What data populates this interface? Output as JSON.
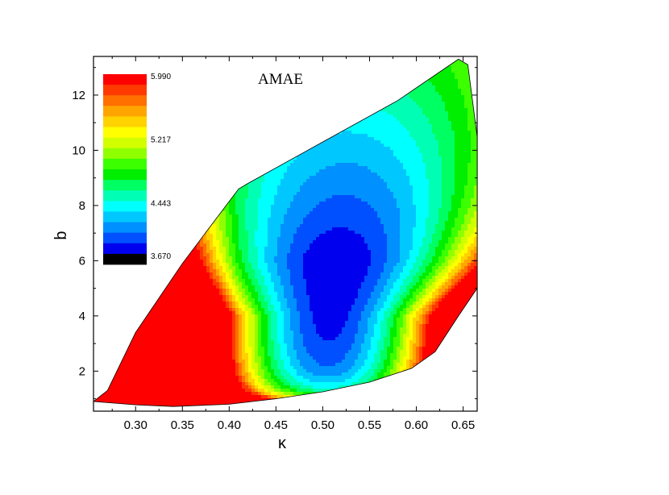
{
  "chart_data": {
    "type": "contour",
    "title": "AMAE",
    "xlabel": "κ",
    "ylabel": "b",
    "xlim": [
      0.255,
      0.665
    ],
    "ylim": [
      0.55,
      13.4
    ],
    "xticks": [
      0.3,
      0.35,
      0.4,
      0.45,
      0.5,
      0.55,
      0.6,
      0.65
    ],
    "xtick_labels": [
      "0.30",
      "0.35",
      "0.40",
      "0.45",
      "0.50",
      "0.55",
      "0.60",
      "0.65"
    ],
    "yticks": [
      2,
      4,
      6,
      8,
      10,
      12
    ],
    "ytick_labels": [
      "2",
      "4",
      "6",
      "8",
      "10",
      "12"
    ],
    "colorbar": {
      "placement": "top-left inside plot",
      "min": 3.67,
      "max": 5.99,
      "labeled_levels": [
        "5.990",
        "5.217",
        "4.443",
        "3.670"
      ],
      "colors": [
        "#ff0000",
        "#ff3a00",
        "#ff7000",
        "#ffa500",
        "#ffd200",
        "#ffff00",
        "#d2ff00",
        "#90ff00",
        "#3cff00",
        "#00ee00",
        "#00ff62",
        "#00ffb4",
        "#00ffff",
        "#00c8ff",
        "#0090ff",
        "#0050ff",
        "#0000ee",
        "#000000"
      ]
    },
    "domain_boundary": [
      [
        0.255,
        0.9
      ],
      [
        0.27,
        1.3
      ],
      [
        0.3,
        3.4
      ],
      [
        0.35,
        5.9
      ],
      [
        0.41,
        8.6
      ],
      [
        0.42,
        8.8
      ],
      [
        0.5,
        10.3
      ],
      [
        0.58,
        11.8
      ],
      [
        0.645,
        13.3
      ],
      [
        0.655,
        13.1
      ],
      [
        0.665,
        10.5
      ],
      [
        0.665,
        5.0
      ],
      [
        0.645,
        4.0
      ],
      [
        0.62,
        2.7
      ],
      [
        0.595,
        2.1
      ],
      [
        0.55,
        1.6
      ],
      [
        0.5,
        1.25
      ],
      [
        0.45,
        1.0
      ],
      [
        0.4,
        0.8
      ],
      [
        0.34,
        0.72
      ],
      [
        0.3,
        0.78
      ],
      [
        0.255,
        0.9
      ]
    ],
    "minimum_region": {
      "kappa": [
        0.49,
        0.535
      ],
      "b": [
        2.0,
        7.2
      ],
      "value_range": "≈3.67–3.8"
    }
  }
}
